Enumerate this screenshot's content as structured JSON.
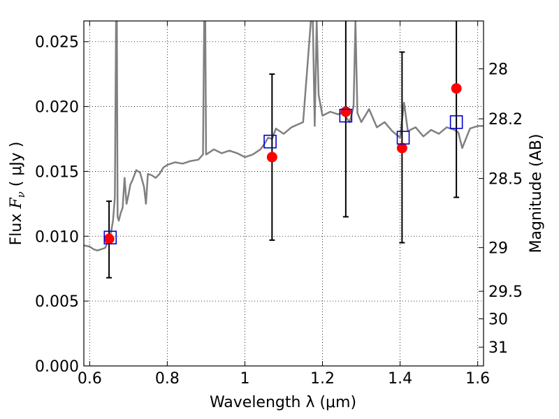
{
  "chart_data": {
    "type": "scatter",
    "title": "",
    "xlabel": "Wavelength  λ (μm)",
    "ylabel": "Flux  F_ν  ( μJy )",
    "ylabel_parts": {
      "prefix": "Flux  ",
      "symbol": "F",
      "sub": "ν",
      "unit": "  ( μJy )"
    },
    "y2label": "Magnitude (AB)",
    "xlim": [
      0.585,
      1.615
    ],
    "ylim": [
      0.0,
      0.0266
    ],
    "grid": true,
    "xticks": [
      0.6,
      0.8,
      1.0,
      1.2,
      1.4,
      1.6
    ],
    "xtick_labels": [
      "0.6",
      "0.8",
      "1",
      "1.2",
      "1.4",
      "1.6"
    ],
    "yticks": [
      0.0,
      0.005,
      0.01,
      0.015,
      0.02,
      0.025
    ],
    "ytick_labels": [
      "0.000",
      "0.005",
      "0.010",
      "0.015",
      "0.020",
      "0.025"
    ],
    "y2ticks": [
      {
        "label": "28",
        "mag": 28.0
      },
      {
        "label": "28.2",
        "mag": 28.2
      },
      {
        "label": "28.5",
        "mag": 28.5
      },
      {
        "label": "29",
        "mag": 29.0
      },
      {
        "label": "29.5",
        "mag": 29.5
      },
      {
        "label": "30",
        "mag": 30.0
      },
      {
        "label": "31",
        "mag": 31.0
      }
    ],
    "colors": {
      "model": "#808080",
      "observed": "#ff0000",
      "model_photometry": "#0000cc",
      "errorbar": "#000000"
    },
    "series": [
      {
        "kind": "line",
        "x": [
          0.585,
          0.6,
          0.61,
          0.62,
          0.63,
          0.64,
          0.65,
          0.655,
          0.66,
          0.665,
          0.668,
          0.67,
          0.672,
          0.675,
          0.68,
          0.685,
          0.69,
          0.695,
          0.7,
          0.705,
          0.71,
          0.72,
          0.73,
          0.74,
          0.745,
          0.75,
          0.76,
          0.77,
          0.78,
          0.79,
          0.8,
          0.82,
          0.84,
          0.86,
          0.88,
          0.892,
          0.895,
          0.898,
          0.9,
          0.92,
          0.94,
          0.96,
          0.98,
          1.0,
          1.02,
          1.04,
          1.05,
          1.06,
          1.07,
          1.08,
          1.1,
          1.12,
          1.15,
          1.17,
          1.175,
          1.18,
          1.185,
          1.19,
          1.2,
          1.22,
          1.24,
          1.25,
          1.26,
          1.27,
          1.28,
          1.285,
          1.29,
          1.3,
          1.32,
          1.34,
          1.36,
          1.38,
          1.4,
          1.41,
          1.42,
          1.44,
          1.46,
          1.48,
          1.5,
          1.52,
          1.54,
          1.55,
          1.56,
          1.58,
          1.6,
          1.615
        ],
        "y": [
          0.0093,
          0.0092,
          0.009,
          0.0089,
          0.009,
          0.0091,
          0.0098,
          0.0103,
          0.0112,
          0.013,
          0.0266,
          0.0266,
          0.0115,
          0.0112,
          0.0118,
          0.0122,
          0.0145,
          0.0125,
          0.0132,
          0.014,
          0.0143,
          0.0151,
          0.0149,
          0.0138,
          0.0125,
          0.0148,
          0.0147,
          0.0145,
          0.0148,
          0.0153,
          0.0155,
          0.0157,
          0.0156,
          0.0158,
          0.0159,
          0.0163,
          0.0266,
          0.0266,
          0.0163,
          0.0167,
          0.0164,
          0.0166,
          0.0164,
          0.0161,
          0.0163,
          0.0167,
          0.0171,
          0.0176,
          0.0175,
          0.0183,
          0.0179,
          0.0184,
          0.0188,
          0.0266,
          0.0266,
          0.0185,
          0.0266,
          0.0209,
          0.0193,
          0.0196,
          0.0194,
          0.0195,
          0.0192,
          0.0188,
          0.02,
          0.0266,
          0.0195,
          0.0188,
          0.0198,
          0.0184,
          0.0188,
          0.0181,
          0.0176,
          0.0203,
          0.0181,
          0.0184,
          0.0177,
          0.0182,
          0.0179,
          0.0184,
          0.0182,
          0.018,
          0.0168,
          0.0183,
          0.0185,
          0.0185
        ]
      },
      {
        "kind": "errorbar",
        "x": [
          0.65,
          1.07,
          1.26,
          1.405,
          1.545
        ],
        "y": [
          0.0098,
          0.0161,
          0.0196,
          0.0168,
          0.0214
        ],
        "yerr_low": [
          0.0068,
          0.0097,
          0.0115,
          0.0095,
          0.013
        ],
        "yerr_high": [
          0.0127,
          0.0225,
          0.0266,
          0.0242,
          0.0266
        ]
      },
      {
        "kind": "scatter_square",
        "x": [
          0.653,
          1.065,
          1.26,
          1.408,
          1.545
        ],
        "y": [
          0.0099,
          0.0173,
          0.0193,
          0.0176,
          0.0188
        ]
      }
    ]
  }
}
